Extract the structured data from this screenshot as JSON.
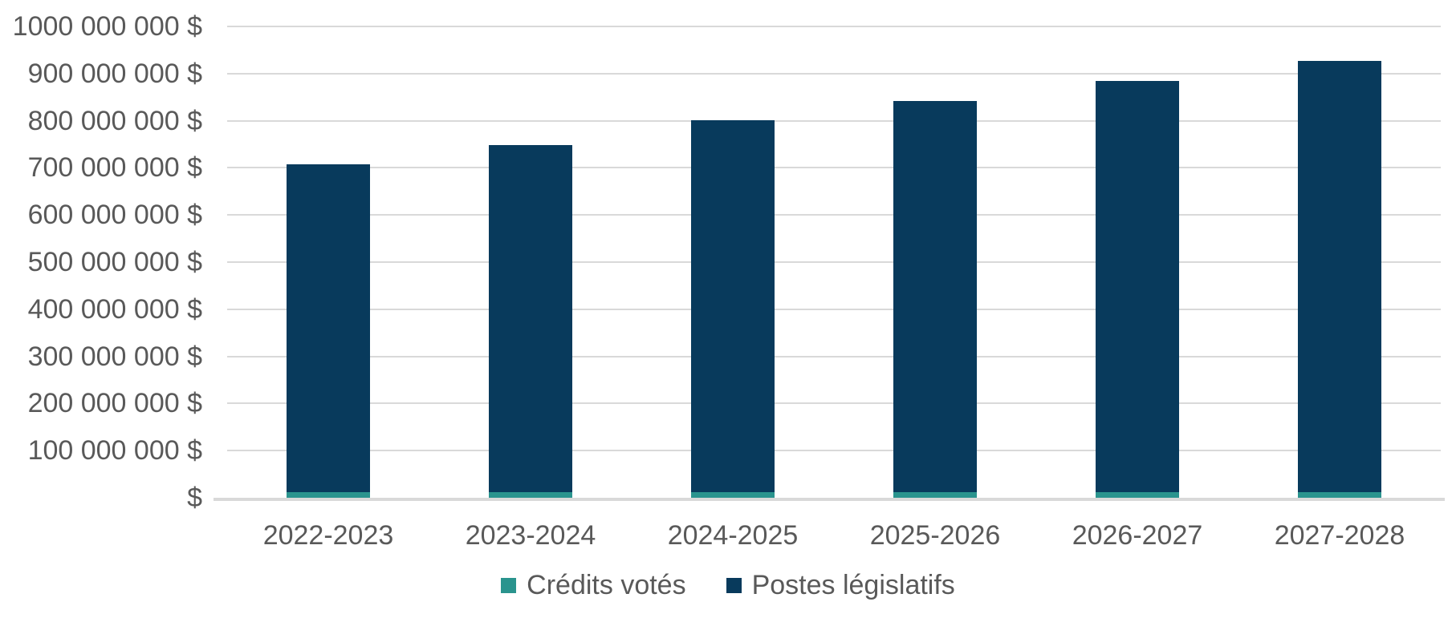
{
  "chart_data": {
    "type": "bar",
    "stacked": true,
    "title": "",
    "xlabel": "",
    "ylabel": "",
    "categories": [
      "2022-2023",
      "2023-2024",
      "2024-2025",
      "2025-2026",
      "2026-2027",
      "2027-2028"
    ],
    "series": [
      {
        "name": "Crédits votés",
        "color": "#2a948e",
        "values": [
          12000000,
          12000000,
          12000000,
          12000000,
          12000000,
          12000000
        ]
      },
      {
        "name": "Postes législatifs",
        "color": "#083a5c",
        "values": [
          696000000,
          737000000,
          789000000,
          830000000,
          873000000,
          915000000
        ]
      }
    ],
    "stacked_totals": [
      708000000,
      749000000,
      801000000,
      842000000,
      885000000,
      927000000
    ],
    "ylim": [
      0,
      1000000000
    ],
    "y_ticks": [
      {
        "value": 1000000000,
        "label": "1000 000 000 $"
      },
      {
        "value": 900000000,
        "label": "900 000 000 $"
      },
      {
        "value": 800000000,
        "label": "800 000 000 $"
      },
      {
        "value": 700000000,
        "label": "700 000 000 $"
      },
      {
        "value": 600000000,
        "label": "600 000 000 $"
      },
      {
        "value": 500000000,
        "label": "500 000 000 $"
      },
      {
        "value": 400000000,
        "label": "400 000 000 $"
      },
      {
        "value": 300000000,
        "label": "300 000 000 $"
      },
      {
        "value": 200000000,
        "label": "200 000 000 $"
      },
      {
        "value": 100000000,
        "label": "100 000 000 $"
      },
      {
        "value": 0,
        "label": "$"
      }
    ],
    "grid": "horizontal",
    "legend_position": "bottom"
  },
  "colors": {
    "background": "#ffffff",
    "axis_text": "#595959",
    "grid_line": "#d9d9d9",
    "series_credits_votes": "#2a948e",
    "series_postes_legislatifs": "#083a5c"
  }
}
